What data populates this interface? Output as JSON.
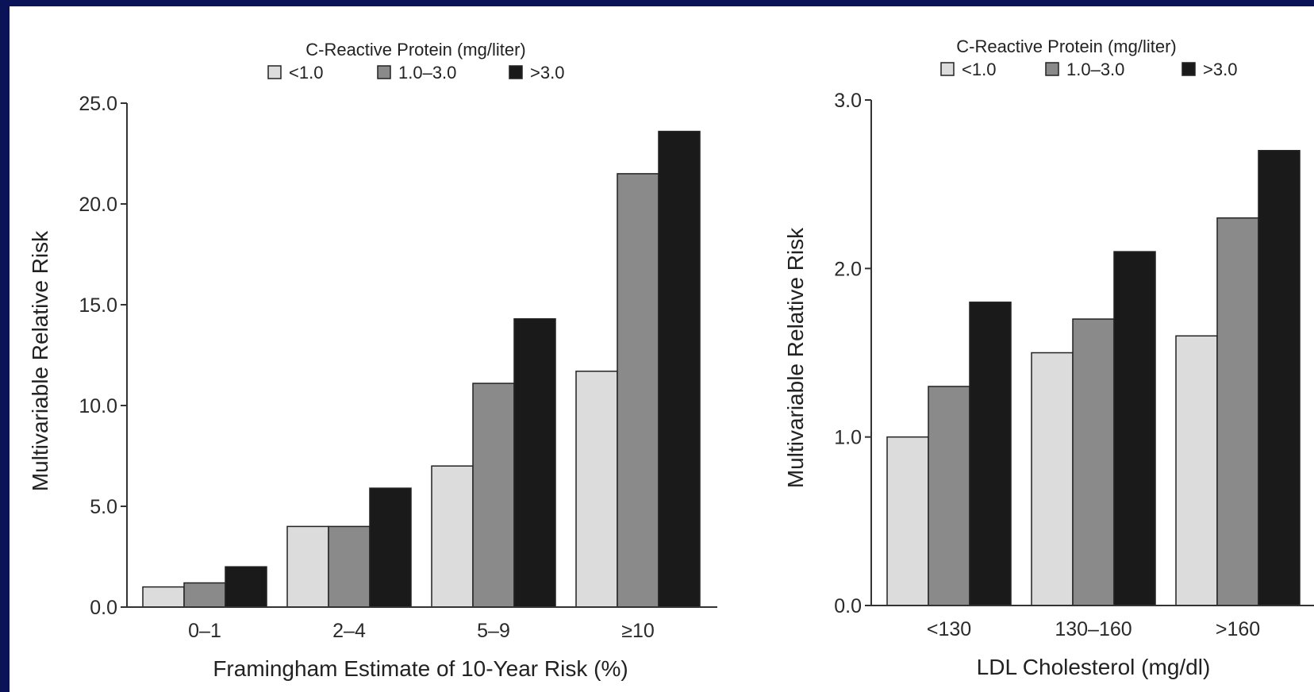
{
  "chart_data": [
    {
      "type": "bar",
      "title": "",
      "legend_title": "C-Reactive Protein (mg/liter)",
      "legend_placement": "top",
      "xlabel": "Framingham Estimate of 10-Year Risk (%)",
      "ylabel": "Multivariable Relative Risk",
      "ylim": [
        0,
        25
      ],
      "yticks": [
        "0.0",
        "5.0",
        "10.0",
        "15.0",
        "20.0",
        "25.0"
      ],
      "grid": false,
      "categories": [
        "0–1",
        "2–4",
        "5–9",
        "≥10"
      ],
      "series": [
        {
          "name": "<1.0",
          "color": "#dcdcdc",
          "values": [
            1.0,
            4.0,
            7.0,
            11.7
          ]
        },
        {
          "name": "1.0–3.0",
          "color": "#8a8a8a",
          "values": [
            1.2,
            4.0,
            11.1,
            21.5
          ]
        },
        {
          "name": ">3.0",
          "color": "#1a1a1a",
          "values": [
            2.0,
            5.9,
            14.3,
            23.6
          ]
        }
      ]
    },
    {
      "type": "bar",
      "title": "",
      "legend_title": "C-Reactive Protein (mg/liter)",
      "legend_placement": "top",
      "xlabel": "LDL Cholesterol (mg/dl)",
      "ylabel": "Multivariable Relative Risk",
      "ylim": [
        0,
        3
      ],
      "yticks": [
        "0.0",
        "1.0",
        "2.0",
        "3.0"
      ],
      "grid": false,
      "categories": [
        "<130",
        "130–160",
        ">160"
      ],
      "series": [
        {
          "name": "<1.0",
          "color": "#dcdcdc",
          "values": [
            1.0,
            1.5,
            1.6
          ]
        },
        {
          "name": "1.0–3.0",
          "color": "#8a8a8a",
          "values": [
            1.3,
            1.7,
            2.3
          ]
        },
        {
          "name": ">3.0",
          "color": "#1a1a1a",
          "values": [
            1.8,
            2.1,
            2.7
          ]
        }
      ]
    }
  ]
}
